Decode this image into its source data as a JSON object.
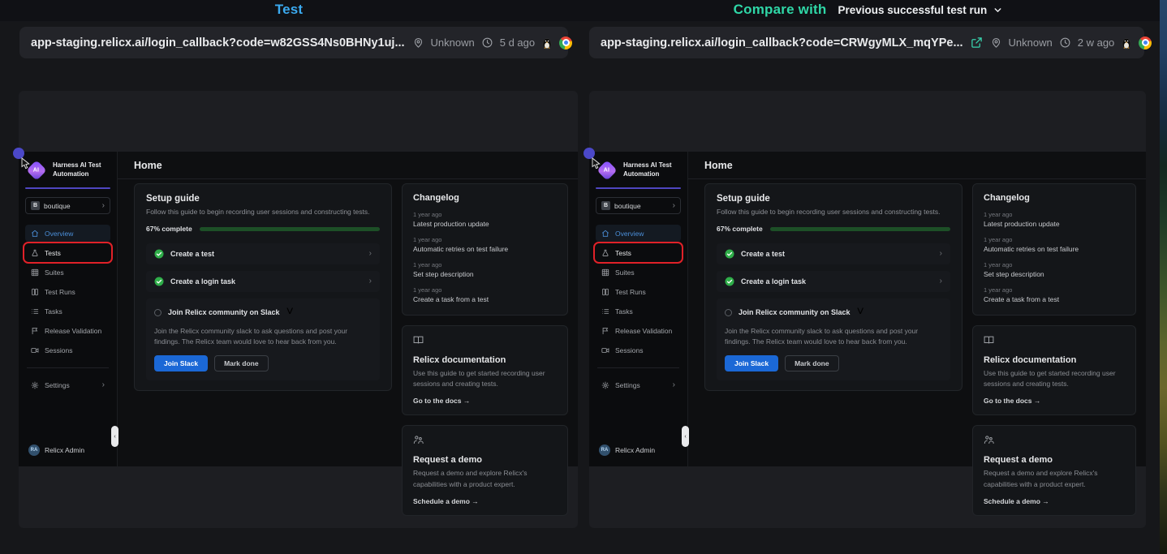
{
  "header": {
    "test_label": "Test",
    "compare_label": "Compare with",
    "compare_selector": "Previous successful test run"
  },
  "capture_left": {
    "url": "app-staging.relicx.ai/login_callback?code=w82GSS4Ns0BHNy1uj...",
    "location": "Unknown",
    "age": "5 d ago"
  },
  "capture_right": {
    "url": "app-staging.relicx.ai/login_callback?code=CRWgyMLX_mqYPe...",
    "location": "Unknown",
    "age": "2 w ago"
  },
  "icons": {
    "location": "location-pin-icon",
    "time": "clock-icon",
    "os": "linux-tux-icon",
    "browser": "chrome-icon",
    "external": "external-link-icon",
    "expand": "chevron-down-icon"
  },
  "colors": {
    "test_label": "#3BAAF0",
    "compare_label": "#2FD7A7",
    "progress_fill": "#40B34F",
    "progress_track": "#1D4F27",
    "join_slack_button": "#1B68D6",
    "annotation_box": "#E02128",
    "active_nav": "#4B8FD9"
  },
  "app": {
    "brand": {
      "line1": "Harness AI Test",
      "line2": "Automation"
    },
    "project": {
      "badge": "B",
      "name": "boutique"
    },
    "nav": [
      {
        "label": "Overview",
        "icon": "home",
        "active": true
      },
      {
        "label": "Tests",
        "icon": "flask",
        "annotated": true
      },
      {
        "label": "Suites",
        "icon": "grid"
      },
      {
        "label": "Test Runs",
        "icon": "columns"
      },
      {
        "label": "Tasks",
        "icon": "list"
      },
      {
        "label": "Release Validation",
        "icon": "flag"
      },
      {
        "label": "Sessions",
        "icon": "video"
      }
    ],
    "settings_label": "Settings",
    "user": {
      "initials": "RA",
      "name": "Relicx Admin"
    },
    "main": {
      "title": "Home",
      "setup": {
        "title": "Setup guide",
        "subtitle": "Follow this guide to begin recording user sessions and constructing tests.",
        "progress_label": "67% complete",
        "progress_pct": 67,
        "steps": [
          {
            "label": "Create a test",
            "done": true
          },
          {
            "label": "Create a login task",
            "done": true
          },
          {
            "label": "Join Relicx community on Slack",
            "done": false,
            "description": "Join the Relicx community slack to ask questions and post your findings. The Relicx team would love to hear back from you.",
            "primary_button": "Join Slack",
            "secondary_button": "Mark done"
          }
        ]
      },
      "changelog": {
        "title": "Changelog",
        "entries": [
          {
            "time": "1 year ago",
            "text": "Latest production update"
          },
          {
            "time": "1 year ago",
            "text": "Automatic retries on test failure"
          },
          {
            "time": "1 year ago",
            "text": "Set step description"
          },
          {
            "time": "1 year ago",
            "text": "Create a task from a test"
          }
        ]
      },
      "docs": {
        "title": "Relicx documentation",
        "description": "Use this guide to get started recording user sessions and creating tests.",
        "link": "Go to the docs →"
      },
      "demo": {
        "title": "Request a demo",
        "description": "Request a demo and explore Relicx's capabilities with a product expert.",
        "link": "Schedule a demo →"
      }
    }
  }
}
